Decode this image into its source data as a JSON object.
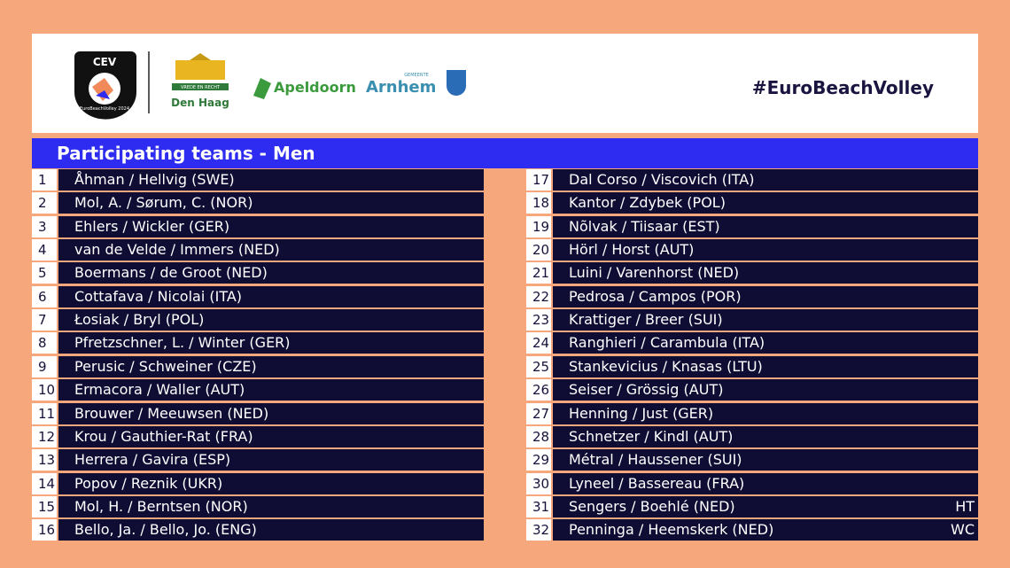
{
  "header": {
    "hashtag": "#EuroBeachVolley",
    "logos": {
      "cev": "CEV",
      "cev_sub": "EuroBeachVolley 2024",
      "den_haag_motto": "VREDE EN RECHT",
      "den_haag": "Den Haag",
      "apeldoorn": "Apeldoorn",
      "arnhem_top": "GEMEENTE",
      "arnhem": "Arnhem"
    }
  },
  "title": "Participating teams - Men",
  "columns": [
    [
      {
        "number": 1,
        "name": "Åhman / Hellvig (SWE)"
      },
      {
        "number": 2,
        "name": "Mol, A. / Sørum, C. (NOR)"
      },
      {
        "number": 3,
        "name": "Ehlers / Wickler (GER)"
      },
      {
        "number": 4,
        "name": "van de Velde / Immers (NED)"
      },
      {
        "number": 5,
        "name": "Boermans / de Groot (NED)"
      },
      {
        "number": 6,
        "name": "Cottafava / Nicolai (ITA)"
      },
      {
        "number": 7,
        "name": "Łosiak / Bryl (POL)"
      },
      {
        "number": 8,
        "name": "Pfretzschner, L. / Winter (GER)"
      },
      {
        "number": 9,
        "name": "Perusic / Schweiner (CZE)"
      },
      {
        "number": 10,
        "name": "Ermacora / Waller (AUT)"
      },
      {
        "number": 11,
        "name": "Brouwer / Meeuwsen (NED)"
      },
      {
        "number": 12,
        "name": "Krou / Gauthier-Rat (FRA)"
      },
      {
        "number": 13,
        "name": "Herrera / Gavira (ESP)"
      },
      {
        "number": 14,
        "name": "Popov / Reznik (UKR)"
      },
      {
        "number": 15,
        "name": "Mol, H. / Berntsen (NOR)"
      },
      {
        "number": 16,
        "name": "Bello, Ja. / Bello, Jo. (ENG)"
      }
    ],
    [
      {
        "number": 17,
        "name": "Dal Corso / Viscovich (ITA)"
      },
      {
        "number": 18,
        "name": "Kantor / Zdybek (POL)"
      },
      {
        "number": 19,
        "name": "Nõlvak / Tiisaar (EST)"
      },
      {
        "number": 20,
        "name": "Hörl / Horst (AUT)"
      },
      {
        "number": 21,
        "name": "Luini / Varenhorst (NED)"
      },
      {
        "number": 22,
        "name": "Pedrosa / Campos (POR)"
      },
      {
        "number": 23,
        "name": "Krattiger / Breer (SUI)"
      },
      {
        "number": 24,
        "name": "Ranghieri / Carambula (ITA)"
      },
      {
        "number": 25,
        "name": "Stankevicius / Knasas (LTU)"
      },
      {
        "number": 26,
        "name": "Seiser / Grössig (AUT)"
      },
      {
        "number": 27,
        "name": "Henning / Just (GER)"
      },
      {
        "number": 28,
        "name": "Schnetzer / Kindl (AUT)"
      },
      {
        "number": 29,
        "name": "Métral / Haussener (SUI)"
      },
      {
        "number": 30,
        "name": "Lyneel / Bassereau (FRA)"
      },
      {
        "number": 31,
        "name": "Sengers / Boehlé (NED)",
        "tag": "HT"
      },
      {
        "number": 32,
        "name": "Penninga / Heemskerk (NED)",
        "tag": "WC"
      }
    ]
  ]
}
